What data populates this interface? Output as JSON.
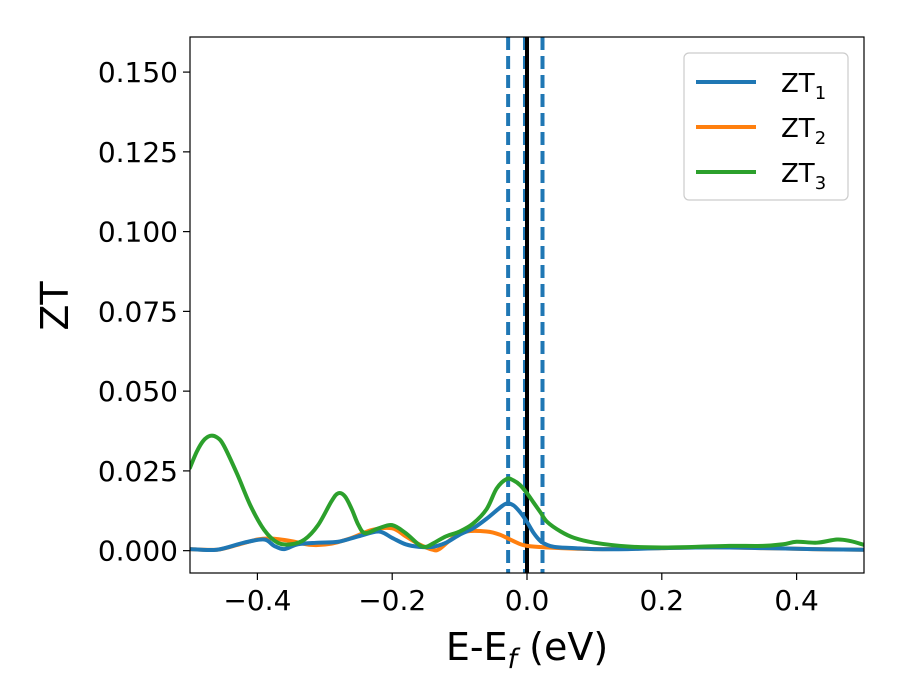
{
  "chart_data": {
    "type": "line",
    "title": "",
    "xlabel": {
      "base": "E-E",
      "sub": "f",
      "suffix": " (eV)"
    },
    "ylabel": "ZT",
    "xlim": [
      -0.5,
      0.5
    ],
    "ylim": [
      -0.007,
      0.161
    ],
    "xticks": [
      -0.4,
      -0.2,
      0.0,
      0.2,
      0.4
    ],
    "xtick_labels": [
      "−0.4",
      "−0.2",
      "0.0",
      "0.2",
      "0.4"
    ],
    "yticks": [
      0.0,
      0.025,
      0.05,
      0.075,
      0.1,
      0.125,
      0.15
    ],
    "ytick_labels": [
      "0.000",
      "0.025",
      "0.050",
      "0.075",
      "0.100",
      "0.125",
      "0.150"
    ],
    "grid": false,
    "legend_position": "top-right",
    "vlines": [
      {
        "x": -0.028,
        "style": "dashed",
        "color": "#1f77b4"
      },
      {
        "x": 0.023,
        "style": "dashed",
        "color": "#1f77b4"
      },
      {
        "x": -0.003,
        "style": "dashed",
        "color": "#1f77b4"
      },
      {
        "x": 0.0,
        "style": "solid",
        "color": "#000000"
      }
    ],
    "series": [
      {
        "name": "ZT",
        "sub": "1",
        "color": "#1f77b4",
        "x": [
          -0.5,
          -0.46,
          -0.42,
          -0.39,
          -0.375,
          -0.36,
          -0.34,
          -0.31,
          -0.28,
          -0.25,
          -0.22,
          -0.2,
          -0.18,
          -0.16,
          -0.14,
          -0.12,
          -0.1,
          -0.08,
          -0.06,
          -0.04,
          -0.03,
          -0.02,
          -0.01,
          0.0,
          0.01,
          0.02,
          0.03,
          0.04,
          0.05,
          0.07,
          0.1,
          0.15,
          0.2,
          0.25,
          0.3,
          0.35,
          0.4,
          0.45,
          0.5
        ],
        "y": [
          0.0005,
          0.0003,
          0.0025,
          0.0035,
          0.0015,
          0.0005,
          0.002,
          0.0025,
          0.0028,
          0.0045,
          0.006,
          0.004,
          0.002,
          0.0012,
          0.0012,
          0.0025,
          0.005,
          0.007,
          0.01,
          0.0135,
          0.0148,
          0.0142,
          0.012,
          0.009,
          0.0055,
          0.003,
          0.0018,
          0.0012,
          0.001,
          0.0008,
          0.0005,
          0.0005,
          0.0008,
          0.001,
          0.001,
          0.0008,
          0.0006,
          0.0004,
          0.0003
        ]
      },
      {
        "name": "ZT",
        "sub": "2",
        "color": "#ff7f0e",
        "x": [
          -0.5,
          -0.46,
          -0.43,
          -0.4,
          -0.38,
          -0.35,
          -0.32,
          -0.29,
          -0.26,
          -0.23,
          -0.2,
          -0.18,
          -0.16,
          -0.14,
          -0.13,
          -0.11,
          -0.09,
          -0.06,
          -0.04,
          -0.02,
          0.0,
          0.05,
          0.1,
          0.15,
          0.2,
          0.25,
          0.3,
          0.35,
          0.4,
          0.45,
          0.5
        ],
        "y": [
          0.0005,
          0.0003,
          0.0018,
          0.0035,
          0.0038,
          0.003,
          0.0018,
          0.0022,
          0.004,
          0.0065,
          0.007,
          0.0045,
          0.002,
          0.0003,
          0.0005,
          0.004,
          0.006,
          0.006,
          0.005,
          0.003,
          0.0015,
          0.0008,
          0.0005,
          0.0006,
          0.0008,
          0.001,
          0.001,
          0.0008,
          0.0006,
          0.0004,
          0.0003
        ]
      },
      {
        "name": "ZT",
        "sub": "3",
        "color": "#2ca02c",
        "x": [
          -0.5,
          -0.49,
          -0.48,
          -0.47,
          -0.46,
          -0.45,
          -0.43,
          -0.41,
          -0.39,
          -0.37,
          -0.35,
          -0.33,
          -0.31,
          -0.29,
          -0.28,
          -0.27,
          -0.26,
          -0.25,
          -0.24,
          -0.22,
          -0.2,
          -0.18,
          -0.16,
          -0.15,
          -0.14,
          -0.12,
          -0.1,
          -0.08,
          -0.06,
          -0.045,
          -0.03,
          -0.02,
          -0.01,
          0.0,
          0.01,
          0.02,
          0.03,
          0.05,
          0.07,
          0.1,
          0.15,
          0.2,
          0.25,
          0.3,
          0.35,
          0.38,
          0.4,
          0.43,
          0.46,
          0.48,
          0.5
        ],
        "y": [
          0.026,
          0.031,
          0.0345,
          0.036,
          0.0355,
          0.033,
          0.024,
          0.014,
          0.0065,
          0.0025,
          0.002,
          0.0035,
          0.008,
          0.0155,
          0.018,
          0.017,
          0.013,
          0.008,
          0.0055,
          0.007,
          0.008,
          0.0055,
          0.0018,
          0.0012,
          0.0022,
          0.0045,
          0.006,
          0.0085,
          0.013,
          0.0195,
          0.0225,
          0.022,
          0.0205,
          0.018,
          0.015,
          0.012,
          0.009,
          0.006,
          0.004,
          0.0025,
          0.0013,
          0.001,
          0.0012,
          0.0015,
          0.0015,
          0.002,
          0.0028,
          0.0025,
          0.0035,
          0.003,
          0.0018
        ]
      }
    ]
  }
}
